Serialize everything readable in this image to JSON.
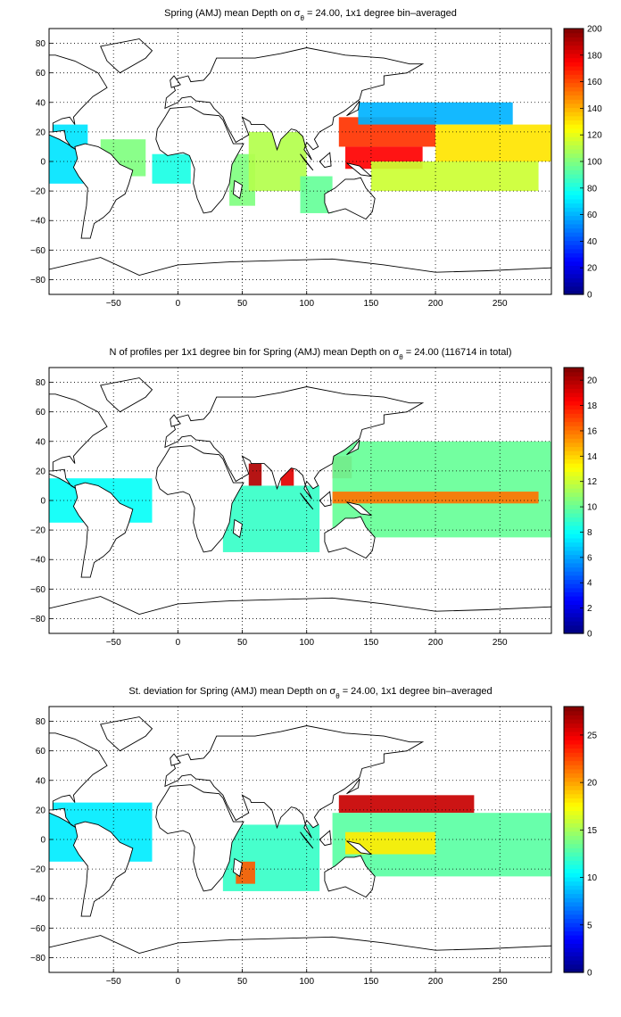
{
  "figure": {
    "panels": [
      {
        "title_pre": "Spring (AMJ) mean Depth on σ",
        "title_sub": "θ",
        "title_post": " = 24.00, 1x1 degree bin–averaged"
      },
      {
        "title_pre": "N of profiles per 1x1 degree bin for Spring (AMJ) mean Depth on σ",
        "title_sub": "θ",
        "title_post": " = 24.00 (116714 in total)"
      },
      {
        "title_pre": "St. deviation for Spring (AMJ) mean Depth on σ",
        "title_sub": "θ",
        "title_post": " = 24.00, 1x1 degree bin–averaged"
      }
    ]
  },
  "chart_data": [
    {
      "type": "heatmap",
      "title": "Spring (AMJ) mean Depth on σθ = 24.00, 1x1 degree bin–averaged",
      "xlim": [
        -100,
        290
      ],
      "ylim": [
        -90,
        90
      ],
      "xticks": [
        -50,
        0,
        50,
        100,
        150,
        200,
        250
      ],
      "yticks": [
        -80,
        -60,
        -40,
        -20,
        0,
        20,
        40,
        60,
        80
      ],
      "grid": true,
      "colorbar": {
        "min": 0,
        "max": 200,
        "ticks": [
          0,
          20,
          40,
          60,
          80,
          100,
          120,
          140,
          160,
          180,
          200
        ]
      },
      "colormap": "jet",
      "regions": [
        {
          "x": [
            -100,
            -70
          ],
          "y": [
            -15,
            25
          ],
          "value": 70
        },
        {
          "x": [
            -60,
            -25
          ],
          "y": [
            -10,
            15
          ],
          "value": 100
        },
        {
          "x": [
            -20,
            10
          ],
          "y": [
            -15,
            5
          ],
          "value": 80
        },
        {
          "x": [
            40,
            60
          ],
          "y": [
            -30,
            5
          ],
          "value": 100
        },
        {
          "x": [
            55,
            100
          ],
          "y": [
            -20,
            20
          ],
          "value": 110
        },
        {
          "x": [
            95,
            120
          ],
          "y": [
            -35,
            -10
          ],
          "value": 95
        },
        {
          "x": [
            125,
            200
          ],
          "y": [
            10,
            30
          ],
          "value": 165
        },
        {
          "x": [
            130,
            190
          ],
          "y": [
            -5,
            10
          ],
          "value": 175
        },
        {
          "x": [
            140,
            260
          ],
          "y": [
            25,
            40
          ],
          "value": 60
        },
        {
          "x": [
            200,
            290
          ],
          "y": [
            0,
            25
          ],
          "value": 130
        },
        {
          "x": [
            150,
            280
          ],
          "y": [
            -20,
            0
          ],
          "value": 115
        }
      ]
    },
    {
      "type": "heatmap",
      "title": "N of profiles per 1x1 degree bin for Spring (AMJ) mean Depth on σθ = 24.00 (116714 in total)",
      "xlim": [
        -100,
        290
      ],
      "ylim": [
        -90,
        90
      ],
      "xticks": [
        -50,
        0,
        50,
        100,
        150,
        200,
        250
      ],
      "yticks": [
        -80,
        -60,
        -40,
        -20,
        0,
        20,
        40,
        60,
        80
      ],
      "grid": true,
      "colorbar": {
        "min": 0,
        "max": 21,
        "ticks": [
          0,
          2,
          4,
          6,
          8,
          10,
          12,
          14,
          16,
          18,
          20
        ]
      },
      "colormap": "jet",
      "total_profiles": 116714,
      "regions": [
        {
          "x": [
            -100,
            -20
          ],
          "y": [
            -15,
            15
          ],
          "value": 8
        },
        {
          "x": [
            35,
            110
          ],
          "y": [
            -35,
            10
          ],
          "value": 9
        },
        {
          "x": [
            55,
            65
          ],
          "y": [
            10,
            25
          ],
          "value": 20
        },
        {
          "x": [
            80,
            90
          ],
          "y": [
            10,
            22
          ],
          "value": 19
        },
        {
          "x": [
            120,
            135
          ],
          "y": [
            15,
            30
          ],
          "value": 18
        },
        {
          "x": [
            120,
            290
          ],
          "y": [
            -25,
            40
          ],
          "value": 10
        },
        {
          "x": [
            120,
            280
          ],
          "y": [
            -2,
            6
          ],
          "value": 16
        }
      ]
    },
    {
      "type": "heatmap",
      "title": "St. deviation for Spring (AMJ) mean Depth on σθ = 24.00, 1x1 degree bin–averaged",
      "xlim": [
        -100,
        290
      ],
      "ylim": [
        -90,
        90
      ],
      "xticks": [
        -50,
        0,
        50,
        100,
        150,
        200,
        250
      ],
      "yticks": [
        -80,
        -60,
        -40,
        -20,
        0,
        20,
        40,
        60,
        80
      ],
      "grid": true,
      "colorbar": {
        "min": 0,
        "max": 28,
        "ticks": [
          0,
          5,
          10,
          15,
          20,
          25
        ]
      },
      "colormap": "jet",
      "regions": [
        {
          "x": [
            -100,
            -20
          ],
          "y": [
            -15,
            25
          ],
          "value": 10
        },
        {
          "x": [
            35,
            110
          ],
          "y": [
            -35,
            10
          ],
          "value": 12
        },
        {
          "x": [
            45,
            60
          ],
          "y": [
            -30,
            -15
          ],
          "value": 22
        },
        {
          "x": [
            125,
            230
          ],
          "y": [
            18,
            30
          ],
          "value": 26
        },
        {
          "x": [
            120,
            290
          ],
          "y": [
            -25,
            18
          ],
          "value": 13
        },
        {
          "x": [
            130,
            200
          ],
          "y": [
            -10,
            5
          ],
          "value": 18
        }
      ]
    }
  ]
}
